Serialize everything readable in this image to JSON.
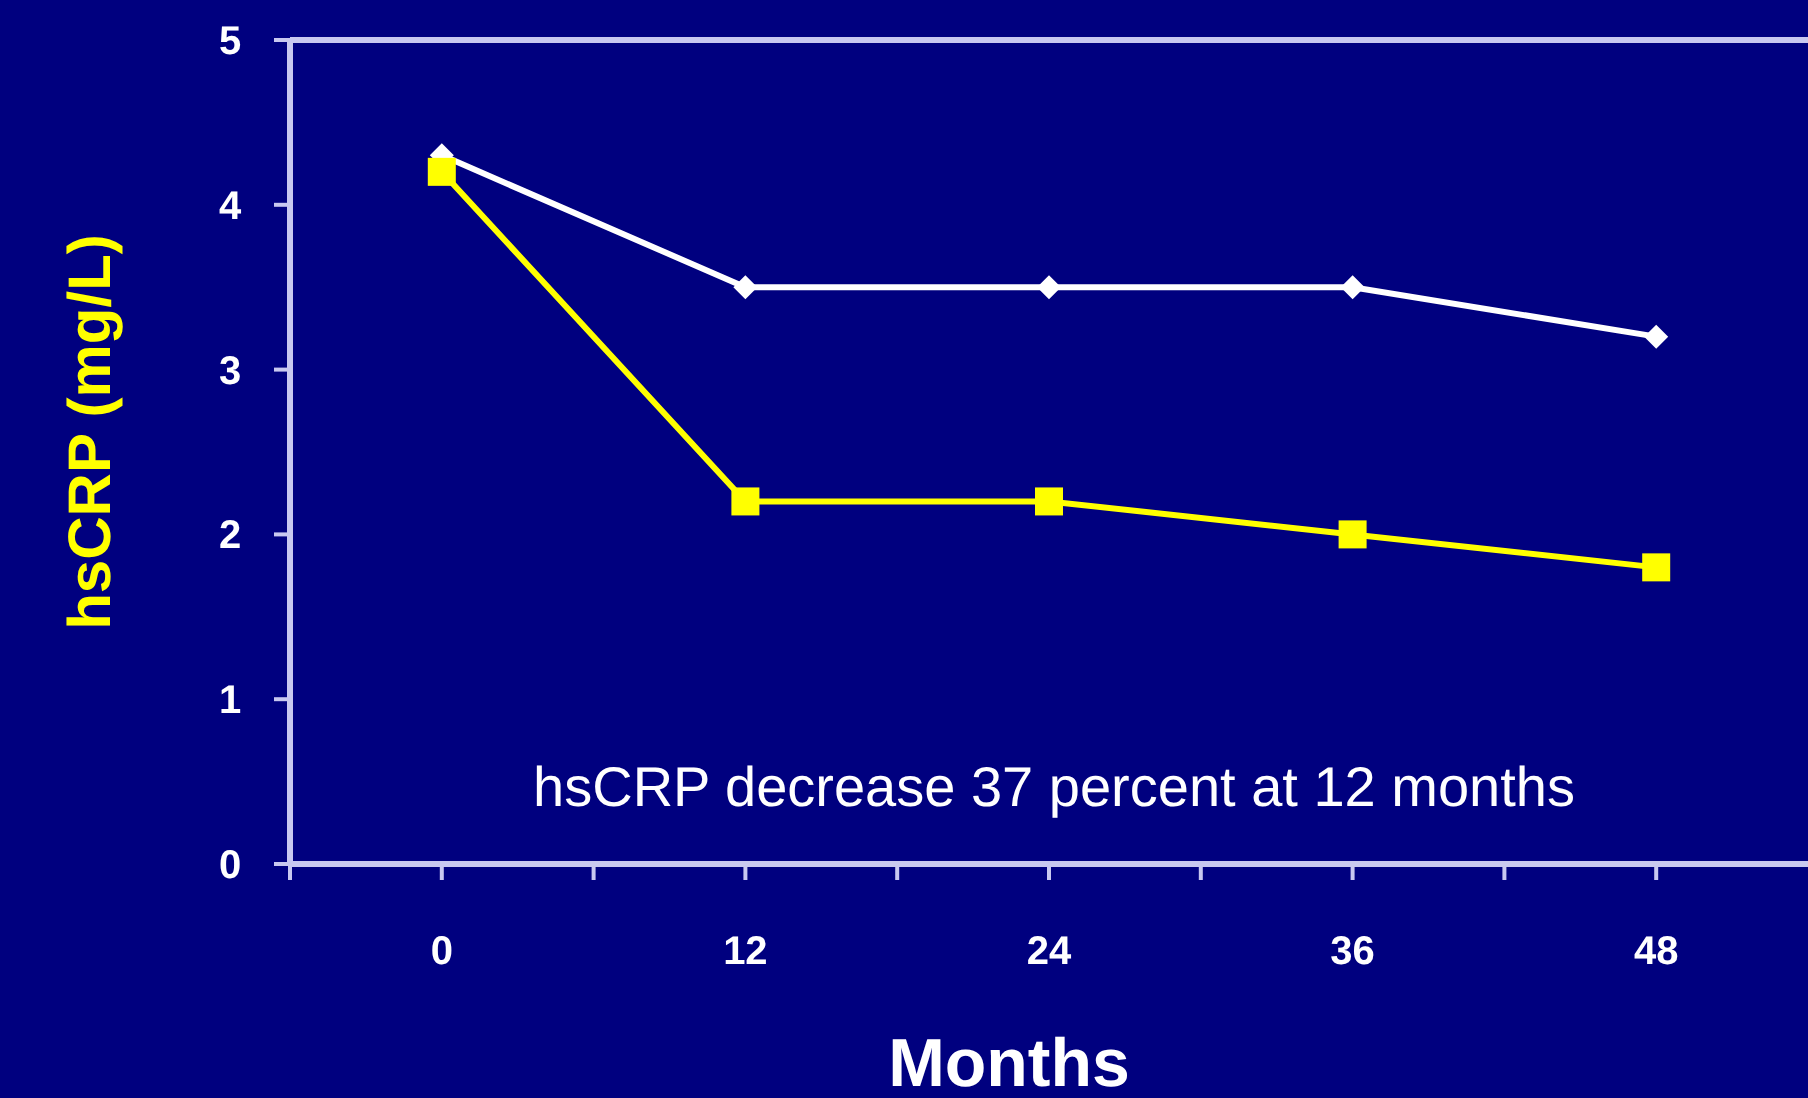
{
  "chart_data": {
    "type": "line",
    "xlabel": "Months",
    "ylabel": "hsCRP (mg/L)",
    "x": [
      0,
      12,
      24,
      36,
      48
    ],
    "xlim": [
      -6,
      54
    ],
    "xticks": [
      {
        "value": -6,
        "label": null
      },
      0,
      {
        "value": 6,
        "label": null
      },
      12,
      {
        "value": 18,
        "label": null
      },
      24,
      {
        "value": 30,
        "label": null
      },
      36,
      {
        "value": 42,
        "label": null
      },
      48
    ],
    "ylim": [
      0,
      5
    ],
    "yticks": [
      0,
      1,
      2,
      3,
      4,
      5
    ],
    "series": [
      {
        "color": "#ffffff",
        "marker": "diamond",
        "values": [
          4.3,
          3.5,
          3.5,
          3.5,
          3.2
        ]
      },
      {
        "color": "#ffff00",
        "marker": "square",
        "values": [
          4.2,
          2.2,
          2.2,
          2.0,
          1.8
        ]
      }
    ],
    "annotations": [
      "hsCRP decrease 37 percent at 12 months"
    ],
    "grid": false,
    "line_style": "solid"
  }
}
